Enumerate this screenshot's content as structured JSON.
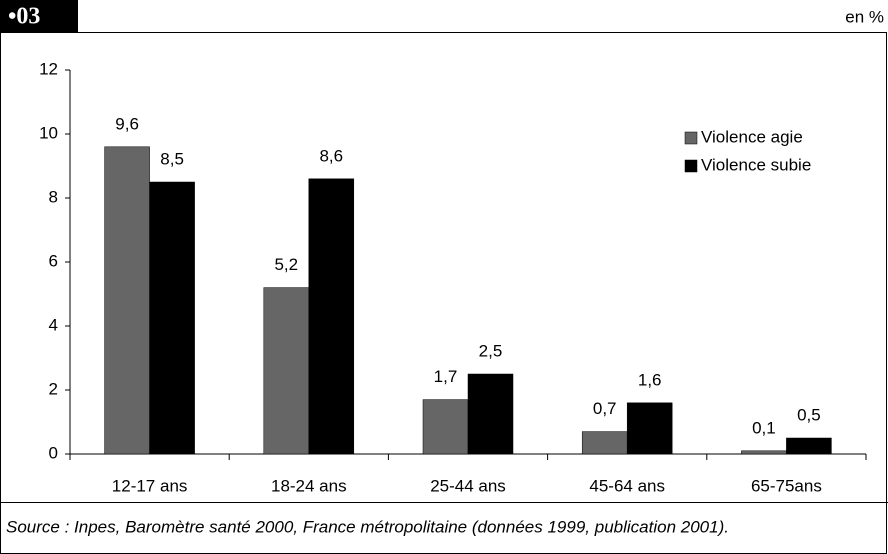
{
  "chart_data": {
    "type": "grouped_bar",
    "badge": "•03",
    "unit_label": "en %",
    "source": "Source : Inpes, Baromètre santé 2000, France métropolitaine (données 1999, publication 2001).",
    "categories": [
      "12-17 ans",
      "18-24 ans",
      "25-44 ans",
      "45-64 ans",
      "65-75ans"
    ],
    "series": [
      {
        "name": "Violence agie",
        "color": "#666666",
        "values": [
          9.6,
          5.2,
          1.7,
          0.7,
          0.1
        ],
        "value_labels": [
          "9,6",
          "5,2",
          "1,7",
          "0,7",
          "0,1"
        ]
      },
      {
        "name": "Violence subie",
        "color": "#000000",
        "values": [
          8.5,
          8.6,
          2.5,
          1.6,
          0.5
        ],
        "value_labels": [
          "8,5",
          "8,6",
          "2,5",
          "1,6",
          "0,5"
        ]
      }
    ],
    "ylim": [
      0,
      12
    ],
    "yticks": [
      0,
      2,
      4,
      6,
      8,
      10,
      12
    ],
    "legend": "top-right"
  }
}
